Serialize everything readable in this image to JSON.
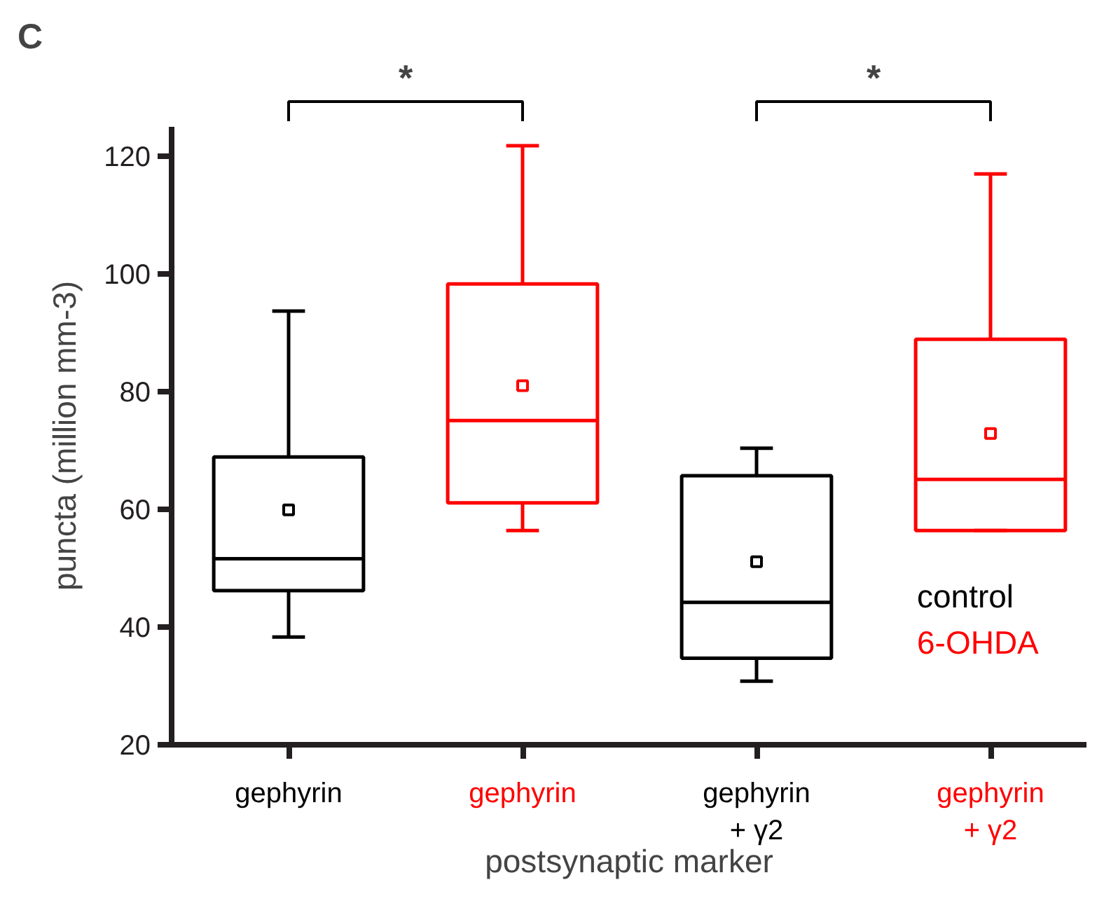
{
  "chart_data": {
    "type": "box",
    "title": "C",
    "xlabel": "postsynaptic marker",
    "ylabel": "puncta (million mm-3)",
    "categories": [
      "gephyrin",
      "gephyrin",
      "gephyrin\n+ γ2",
      "gephyrin\n+ γ2"
    ],
    "series": [
      {
        "name": "control",
        "color": "#000000",
        "boxes": [
          {
            "low": 38.3,
            "q1": 46.2,
            "median": 51.6,
            "q3": 68.9,
            "high": 93.7,
            "mean": 59.9
          },
          null,
          {
            "low": 30.8,
            "q1": 34.7,
            "median": 44.2,
            "q3": 65.7,
            "high": 70.4,
            "mean": 51.1
          },
          null
        ]
      },
      {
        "name": "6-OHDA",
        "color": "#ff0000",
        "boxes": [
          null,
          {
            "low": 56.4,
            "q1": 61.1,
            "median": 75.1,
            "q3": 98.3,
            "high": 121.8,
            "mean": 81.0
          },
          null,
          {
            "low": 56.4,
            "q1": 56.4,
            "median": 65.1,
            "q3": 88.9,
            "high": 117.0,
            "mean": 72.9
          }
        ]
      }
    ],
    "ylim": [
      20,
      125
    ],
    "yticks": [
      20,
      40,
      60,
      80,
      100,
      120
    ],
    "annotations": [
      "*",
      "*"
    ]
  }
}
